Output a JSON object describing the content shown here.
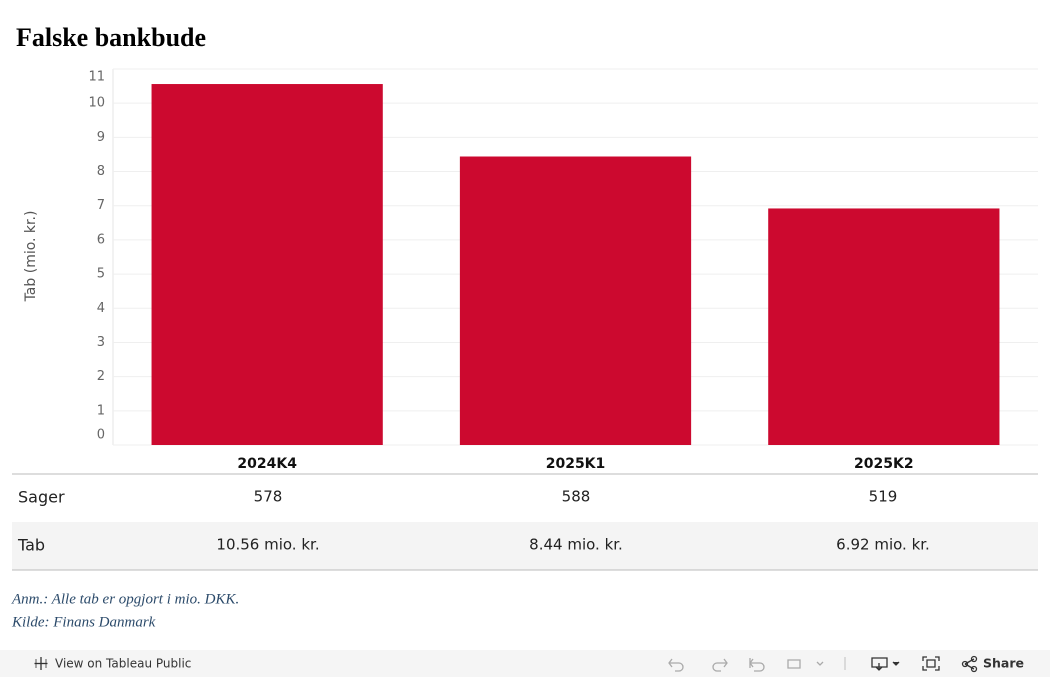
{
  "chart_data": {
    "type": "bar",
    "title": "Falske  bankbude",
    "y_label": "Tab (mio. kr.)",
    "categories": [
      "2024K4",
      "2025K1",
      "2025K2"
    ],
    "values": [
      10.56,
      8.44,
      6.92
    ],
    "color": "#cc092f",
    "ylim": [
      0,
      11
    ],
    "yticks": [
      0,
      1,
      2,
      3,
      4,
      5,
      6,
      7,
      8,
      9,
      10,
      11
    ],
    "grid": true
  },
  "table": {
    "rows": [
      [
        "Sager",
        578,
        588,
        519
      ],
      [
        "Tab",
        "10.56 mio. kr.",
        "8.44 mio. kr.",
        "6.92 mio. kr."
      ]
    ]
  },
  "notes": [
    "Anm.: Alle tab er opgjort i mio. DKK.",
    "Kilde: Finans Danmark"
  ],
  "toolbar": {
    "view": "View on Tableau Public",
    "share": "Share"
  }
}
